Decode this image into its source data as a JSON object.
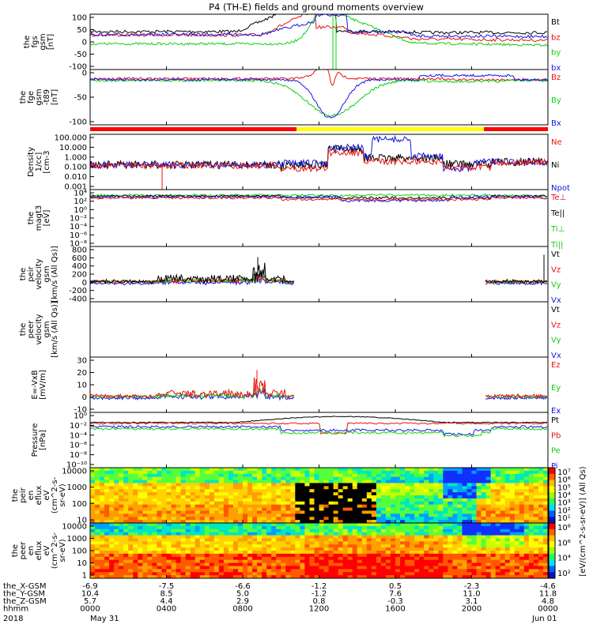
{
  "title": "P4 (TH-E) fields and ground moments overview",
  "colors": {
    "black": "#000000",
    "red": "#e8130f",
    "green": "#10d010",
    "blue": "#1515e6",
    "yellow": "#ffff00",
    "bar_red": "#ff0000"
  },
  "panels": [
    {
      "id": "fgs",
      "ylabel": [
        "the",
        "fgs",
        "gsm",
        "[nT]"
      ],
      "yticks": [
        "100",
        "50",
        "0",
        "-50",
        "-100"
      ],
      "legend": [
        {
          "text": "Bt",
          "color": "#000000"
        },
        {
          "text": "bz",
          "color": "#e8130f"
        },
        {
          "text": "by",
          "color": "#10d010"
        },
        {
          "text": "bx",
          "color": "#1515e6"
        }
      ]
    },
    {
      "id": "fge",
      "ylabel": [
        "the",
        "fge",
        "gsm",
        "-t89",
        "[nT]"
      ],
      "yticks": [
        "0",
        "-50",
        "-100"
      ],
      "legend": [
        {
          "text": "Bz",
          "color": "#e8130f"
        },
        {
          "text": "By",
          "color": "#10d010"
        },
        {
          "text": "Bx",
          "color": "#1515e6"
        }
      ]
    },
    {
      "id": "density",
      "ylabel": [
        "Density",
        "1/cc]",
        "[cm-3"
      ],
      "yticks": [
        "100.000",
        "10.000",
        "1.000",
        "0.100",
        "0.010",
        "0.001"
      ],
      "legend": [
        {
          "text": "Ne",
          "color": "#e8130f"
        },
        {
          "text": "Ni",
          "color": "#000000"
        },
        {
          "text": "Npot",
          "color": "#1515e6"
        }
      ]
    },
    {
      "id": "temp",
      "ylabel": [
        "the",
        "magt3",
        "[eV]"
      ],
      "yticks": [
        "10⁴",
        "10²",
        "10⁰",
        "10⁻²",
        "10⁻⁴",
        "10⁻⁶",
        "10⁻⁸"
      ],
      "legend": [
        {
          "text": "Te⊥",
          "color": "#e8130f"
        },
        {
          "text": "Te||",
          "color": "#000000"
        },
        {
          "text": "Ti⊥",
          "color": "#10d010"
        },
        {
          "text": "Ti||",
          "color": "#10d010"
        }
      ]
    },
    {
      "id": "peirvel",
      "ylabel": [
        "the",
        "peir",
        "velocity",
        "gsm",
        "[km/s (All Qs)]"
      ],
      "yticks": [
        "800",
        "600",
        "400",
        "200",
        "0",
        "-200",
        "-400"
      ],
      "legend": [
        {
          "text": "Vt",
          "color": "#000000"
        },
        {
          "text": "Vz",
          "color": "#e8130f"
        },
        {
          "text": "Vy",
          "color": "#10d010"
        },
        {
          "text": "Vx",
          "color": "#1515e6"
        }
      ]
    },
    {
      "id": "peervel",
      "ylabel": [
        "the",
        "peer",
        "velocity",
        "gsm",
        "[km/s (All Qs)]"
      ],
      "yticks": [],
      "legend": [
        {
          "text": "Vt",
          "color": "#000000"
        },
        {
          "text": "Vz",
          "color": "#e8130f"
        },
        {
          "text": "Vy",
          "color": "#10d010"
        },
        {
          "text": "Vx",
          "color": "#1515e6"
        }
      ]
    },
    {
      "id": "efield",
      "ylabel": [
        "E=-VxB",
        "[mV/m]"
      ],
      "yticks": [
        "30",
        "20",
        "10",
        "0",
        "-10"
      ],
      "legend": [
        {
          "text": "Ez",
          "color": "#e8130f"
        },
        {
          "text": "Ey",
          "color": "#10d010"
        },
        {
          "text": "Ex",
          "color": "#1515e6"
        }
      ]
    },
    {
      "id": "pressure",
      "ylabel": [
        "Pressure",
        "[nPa]"
      ],
      "yticks": [
        "10⁰",
        "10⁻²",
        "10⁻⁴",
        "10⁻⁶",
        "10⁻⁸",
        "10⁻¹⁰"
      ],
      "legend": [
        {
          "text": "Pt",
          "color": "#000000"
        },
        {
          "text": "Pb",
          "color": "#e8130f"
        },
        {
          "text": "Pe",
          "color": "#10d010"
        },
        {
          "text": "Pi",
          "color": "#1515e6"
        }
      ]
    },
    {
      "id": "peirspec",
      "ylabel": [
        "the",
        "peir",
        "en",
        "eflux",
        "eV",
        "(cm^2-s-",
        "sr-eV)"
      ],
      "yticks": [
        "10000",
        "1000",
        "100",
        "10"
      ],
      "legend": []
    },
    {
      "id": "peerspec",
      "ylabel": [
        "the",
        "peer",
        "en",
        "eflux",
        "eV",
        "(cm^2-s-",
        "sr-eV)"
      ],
      "yticks": [
        "10000",
        "1000",
        "100",
        "10",
        "1"
      ],
      "legend": []
    }
  ],
  "colorbars": [
    {
      "ticks": [
        "10⁷",
        "10⁶",
        "10⁵",
        "10⁴",
        "10³",
        "10²",
        "10¹"
      ]
    },
    {
      "ticks": [
        "10⁸",
        "10⁶",
        "10⁴",
        "10²"
      ]
    }
  ],
  "colorbar_label": "[eV/(cm^2-s-sr-eV)] (All Qs)",
  "footer": {
    "rows": [
      {
        "label": "the_X-GSM",
        "values": [
          "-6.9",
          "-7.5",
          "-6.6",
          "-1.2",
          "0.5",
          "-2.3",
          "-4.6"
        ]
      },
      {
        "label": "the_Y-GSM",
        "values": [
          "10.4",
          "8.5",
          "5.0",
          "-1.2",
          "7.6",
          "11.0",
          "11.8"
        ]
      },
      {
        "label": "the_Z-GSM",
        "values": [
          "5.7",
          "4.4",
          "2.9",
          "0.8",
          "-0.3",
          "3.1",
          "4.8"
        ]
      },
      {
        "label": "hhmm",
        "values": [
          "0000",
          "0400",
          "0800",
          "1200",
          "1600",
          "2000",
          "0000"
        ]
      }
    ],
    "year": "2018",
    "date_start": "May 31",
    "date_end": "Jun 01"
  },
  "chart_data": {
    "type": "line",
    "title": "P4 (TH-E) fields and ground moments overview",
    "x_unit": "hhmm",
    "x_ticks": [
      "0000",
      "0400",
      "0800",
      "1200",
      "1600",
      "2000",
      "0000"
    ],
    "series_summary": [
      {
        "panel": "fgs",
        "ylim": [
          -100,
          100
        ],
        "series": [
          {
            "name": "Bt",
            "x": [
              "0000",
              "0400",
              "0800",
              "1200",
              "1600",
              "2000",
              "0000"
            ],
            "values": [
              40,
              42,
              48,
              100,
              40,
              35,
              30
            ]
          },
          {
            "name": "bz",
            "x": [
              "0000",
              "0400",
              "0800",
              "1200",
              "1600",
              "2000",
              "0000"
            ],
            "values": [
              25,
              25,
              30,
              50,
              15,
              10,
              0
            ]
          },
          {
            "name": "by",
            "x": [
              "0000",
              "0400",
              "0800",
              "1200",
              "1600",
              "2000",
              "0000"
            ],
            "values": [
              -8,
              -8,
              -5,
              100,
              0,
              -5,
              -10
            ]
          },
          {
            "name": "bx",
            "x": [
              "0000",
              "0400",
              "0800",
              "1200",
              "1600",
              "2000",
              "0000"
            ],
            "values": [
              28,
              30,
              35,
              60,
              30,
              22,
              20
            ]
          }
        ]
      },
      {
        "panel": "fge",
        "ylim": [
          -120,
          20
        ],
        "series": [
          {
            "name": "Bz",
            "x": [
              "0000",
              "0400",
              "0800",
              "1200",
              "1600",
              "2000",
              "0000"
            ],
            "values": [
              0,
              0,
              5,
              0,
              5,
              0,
              -5
            ]
          },
          {
            "name": "By",
            "x": [
              "0000",
              "0400",
              "0800",
              "1200",
              "1600",
              "2000",
              "0000"
            ],
            "values": [
              0,
              -3,
              -5,
              -110,
              -5,
              0,
              0
            ]
          },
          {
            "name": "Bx",
            "x": [
              "0000",
              "0400",
              "0800",
              "1200",
              "1600",
              "2000",
              "0000"
            ],
            "values": [
              0,
              0,
              -3,
              -110,
              0,
              10,
              5
            ]
          }
        ]
      },
      {
        "panel": "pressure",
        "series": [
          {
            "name": "Pt",
            "x": [
              "0000",
              "0800",
              "1200",
              "1600",
              "2000",
              "0000"
            ],
            "values": [
              0.05,
              0.1,
              1,
              0.1,
              0.05,
              0.05
            ]
          }
        ]
      }
    ]
  }
}
